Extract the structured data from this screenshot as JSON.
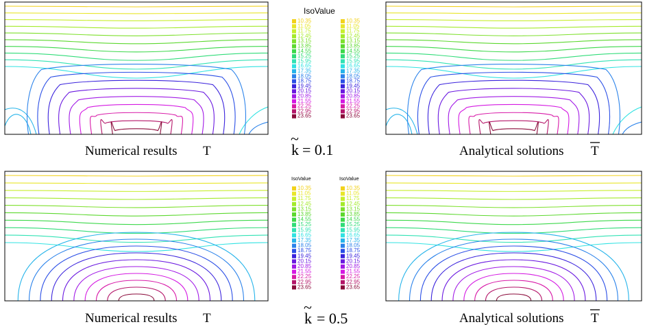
{
  "legend": {
    "title": "IsoValue",
    "values": [
      "10.35",
      "11.05",
      "11.75",
      "12.45",
      "13.15",
      "13.85",
      "14.55",
      "15.25",
      "15.95",
      "16.65",
      "17.35",
      "18.05",
      "18.75",
      "19.45",
      "20.15",
      "20.85",
      "21.55",
      "22.25",
      "22.95",
      "23.65"
    ],
    "colors": [
      "#f2d21c",
      "#e8e62a",
      "#c8ee2e",
      "#a4ea2a",
      "#7ee02c",
      "#5cd82e",
      "#3cd84a",
      "#30dc78",
      "#30e2b4",
      "#30e2e2",
      "#26b4ea",
      "#2a82ea",
      "#2a4ee6",
      "#3a22dc",
      "#6a18e0",
      "#a018e6",
      "#d418e2",
      "#d81aa8",
      "#b41468",
      "#8a0a3a"
    ]
  },
  "rows": [
    {
      "k_symbol": "k",
      "k_text": "= 0.1",
      "left_caption": "Numerical results",
      "left_symbol": "T",
      "right_caption": "Analytical solutions",
      "right_symbol": "T"
    },
    {
      "k_symbol": "k",
      "k_text": "= 0.5",
      "left_caption": "Numerical results",
      "left_symbol": "T",
      "right_caption": "Analytical solutions",
      "right_symbol": "T"
    }
  ]
}
